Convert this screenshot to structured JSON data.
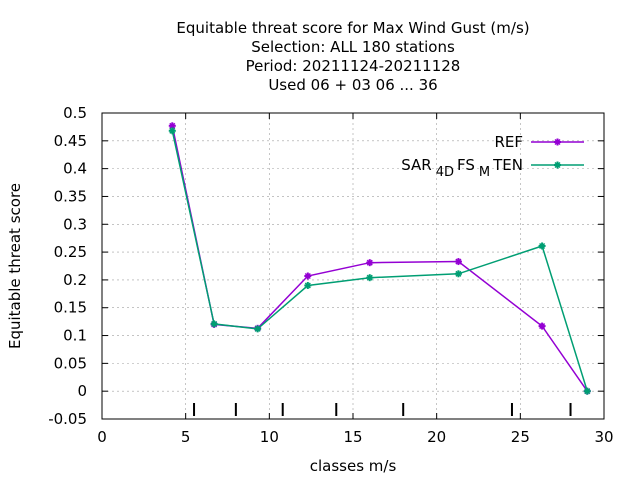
{
  "chart_data": {
    "type": "line",
    "title_lines": [
      "Equitable threat score  for Max Wind Gust (m/s)",
      "Selection: ALL    180 stations",
      "Period: 20211124-20211128",
      "Used  06 + 03 06 ... 36"
    ],
    "xlabel": "classes m/s",
    "ylabel": "Equitable threat score",
    "xlim": [
      0,
      30
    ],
    "ylim": [
      -0.05,
      0.5
    ],
    "xticks": [
      0,
      5,
      10,
      15,
      20,
      25,
      30
    ],
    "xtick_labels": [
      "0",
      "5",
      "10",
      "15",
      "20",
      "25",
      "30"
    ],
    "yticks": [
      -0.05,
      0,
      0.05,
      0.1,
      0.15,
      0.2,
      0.25,
      0.3,
      0.35,
      0.4,
      0.45,
      0.5
    ],
    "ytick_labels": [
      "-0.05",
      "0",
      "0.05",
      "0.1",
      "0.15",
      "0.2",
      "0.25",
      "0.3",
      "0.35",
      "0.4",
      "0.45",
      "0.5"
    ],
    "grid": true,
    "legend_position": "top-right",
    "class_markers_x": [
      5.5,
      8,
      10.8,
      14,
      18,
      24.5,
      28
    ],
    "series": [
      {
        "name": "REF",
        "color": "#9400d3",
        "x": [
          4.2,
          6.7,
          9.3,
          12.3,
          16,
          21.3,
          26.3,
          29
        ],
        "y": [
          0.477,
          0.12,
          0.113,
          0.207,
          0.231,
          0.233,
          0.117,
          0.0
        ]
      },
      {
        "name_parts": [
          {
            "text": "SAR",
            "sub": false
          },
          {
            "text": "4D",
            "sub": true
          },
          {
            "text": "FS",
            "sub": false
          },
          {
            "text": "M",
            "sub": true
          },
          {
            "text": "TEN",
            "sub": false
          }
        ],
        "color": "#009e73",
        "x": [
          4.2,
          6.7,
          9.3,
          12.3,
          16,
          21.3,
          26.3,
          29
        ],
        "y": [
          0.468,
          0.121,
          0.112,
          0.19,
          0.204,
          0.211,
          0.261,
          0.0
        ]
      }
    ]
  }
}
